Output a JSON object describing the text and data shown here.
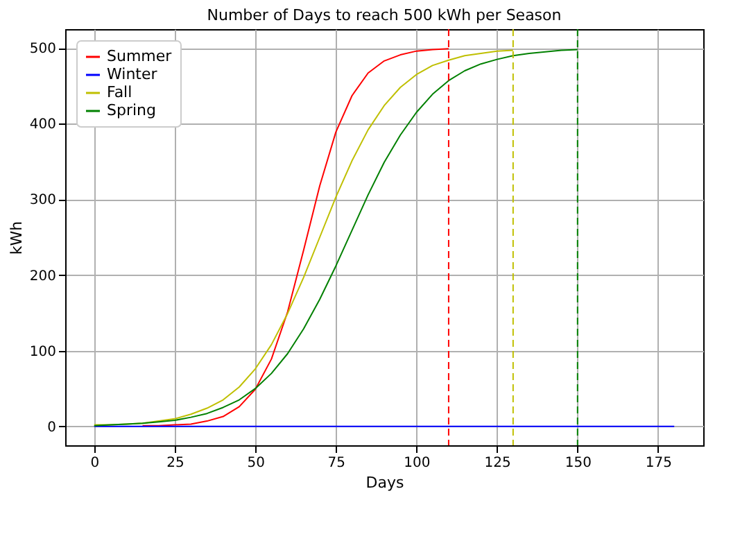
{
  "chart_data": {
    "type": "line",
    "title": "Number of Days to reach 500 kWh per Season",
    "xlabel": "Days",
    "ylabel": "kWh",
    "xlim": [
      -9,
      189
    ],
    "ylim": [
      -25,
      525
    ],
    "xticks": [
      0,
      25,
      50,
      75,
      100,
      125,
      150,
      175
    ],
    "yticks": [
      0,
      100,
      200,
      300,
      400,
      500
    ],
    "grid": true,
    "legend": "top left",
    "line_style": "solid",
    "series": [
      {
        "name": "Summer",
        "color": "#ff0000",
        "x": [
          15,
          20,
          25,
          30,
          35,
          40,
          45,
          50,
          55,
          60,
          65,
          70,
          75,
          80,
          85,
          90,
          95,
          100,
          105,
          110
        ],
        "values": [
          1,
          1,
          2,
          3,
          7,
          13,
          26,
          49,
          89,
          151,
          233,
          318,
          389,
          437,
          467,
          483,
          491,
          496,
          498,
          499
        ]
      },
      {
        "name": "Winter",
        "color": "#0000ff",
        "x": [
          0,
          180
        ],
        "values": [
          0,
          0
        ]
      },
      {
        "name": "Fall",
        "color": "#bfbf00",
        "x": [
          0,
          5,
          10,
          15,
          20,
          25,
          30,
          35,
          40,
          45,
          50,
          55,
          60,
          65,
          70,
          75,
          80,
          85,
          90,
          95,
          100,
          105,
          110,
          115,
          120,
          125,
          130
        ],
        "values": [
          2,
          2,
          3,
          4,
          7,
          10,
          16,
          24,
          35,
          52,
          76,
          108,
          149,
          197,
          250,
          303,
          351,
          392,
          424,
          448,
          465,
          477,
          484,
          490,
          493,
          496,
          497
        ]
      },
      {
        "name": "Spring",
        "color": "#008000",
        "x": [
          0,
          5,
          10,
          15,
          20,
          25,
          30,
          35,
          40,
          45,
          50,
          55,
          60,
          65,
          70,
          75,
          80,
          85,
          90,
          95,
          100,
          105,
          110,
          115,
          120,
          125,
          130,
          135,
          140,
          145,
          150
        ],
        "values": [
          1,
          2,
          3,
          4,
          6,
          8,
          12,
          17,
          25,
          35,
          50,
          70,
          96,
          129,
          168,
          212,
          259,
          306,
          349,
          385,
          415,
          439,
          457,
          470,
          479,
          485,
          490,
          493,
          495,
          497,
          498
        ]
      }
    ],
    "ref_lines": [
      {
        "axis": "x",
        "value": 110,
        "color": "#ff0000",
        "line_style": "dashed"
      },
      {
        "axis": "x",
        "value": 130,
        "color": "#bfbf00",
        "line_style": "dashed"
      },
      {
        "axis": "x",
        "value": 150,
        "color": "#008000",
        "line_style": "dashed"
      }
    ]
  }
}
